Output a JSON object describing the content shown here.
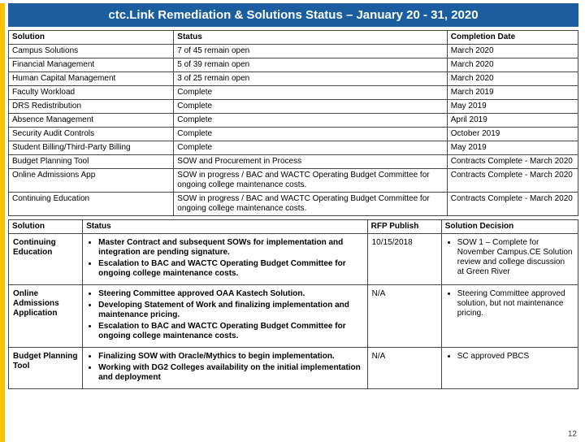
{
  "title": "ctc.Link Remediation & Solutions Status – January 20 - 31, 2020",
  "upper": {
    "headers": [
      "Solution",
      "Status",
      "Completion Date"
    ],
    "groups": [
      [
        {
          "solution": "Campus Solutions",
          "status": "7 of 45 remain open",
          "completion": "March 2020"
        },
        {
          "solution": "Financial Management",
          "status": "5 of 39 remain open",
          "completion": "March 2020"
        },
        {
          "solution": "Human Capital Management",
          "status": "3 of 25 remain open",
          "completion": "March 2020"
        }
      ],
      [
        {
          "solution": "Faculty Workload",
          "status": "Complete",
          "completion": "March 2019"
        },
        {
          "solution": "DRS Redistribution",
          "status": "Complete",
          "completion": "May 2019"
        },
        {
          "solution": "Absence Management",
          "status": "Complete",
          "completion": "April 2019"
        },
        {
          "solution": "Security Audit Controls",
          "status": "Complete",
          "completion": "October 2019"
        },
        {
          "solution": "Student Billing/Third-Party Billing",
          "status": "Complete",
          "completion": "May 2019"
        },
        {
          "solution": "Budget Planning Tool",
          "status": "SOW and Procurement in Process",
          "completion": "Contracts Complete - March 2020"
        },
        {
          "solution": "Online Admissions App",
          "status": "SOW in progress / BAC and WACTC Operating Budget Committee for ongoing college maintenance costs.",
          "completion": "Contracts Complete - March 2020"
        },
        {
          "solution": "Continuing Education",
          "status": "SOW in progress / BAC and WACTC Operating Budget Committee for ongoing college maintenance costs.",
          "completion": "Contracts Complete - March 2020"
        }
      ]
    ]
  },
  "lower": {
    "headers": [
      "Solution",
      "Status",
      "RFP Publish",
      "Solution Decision"
    ],
    "rows": [
      {
        "solution": "Continuing Education",
        "status": [
          "Master Contract and subsequent SOWs for implementation and integration are pending signature.",
          "Escalation to BAC and WACTC Operating Budget Committee for ongoing college maintenance costs."
        ],
        "rfp": "10/15/2018",
        "decision": [
          "SOW 1 – Complete for November Campus.CE Solution review and college discussion at Green River"
        ]
      },
      {
        "solution": "Online Admissions Application",
        "status": [
          "Steering Committee approved OAA Kastech Solution.",
          "Developing Statement of Work and finalizing implementation and maintenance pricing.",
          "Escalation to BAC and WACTC Operating Budget Committee for ongoing college maintenance costs."
        ],
        "rfp": "N/A",
        "decision": [
          "Steering Committee approved solution, but not maintenance pricing."
        ]
      },
      {
        "solution": "Budget Planning Tool",
        "status": [
          "Finalizing SOW with Oracle/Mythics to begin implementation.",
          "Working with DG2 Colleges availability on the initial implementation and deployment"
        ],
        "rfp": "N/A",
        "decision": [
          "SC approved PBCS"
        ]
      }
    ]
  },
  "pagenum": "12",
  "colors": {
    "accent": "#ffc000",
    "band": "#1a5ea0"
  }
}
